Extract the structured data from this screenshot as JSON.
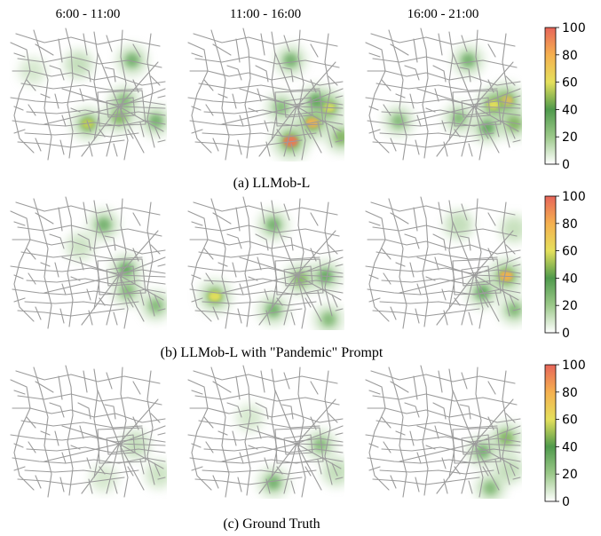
{
  "figure": {
    "column_headers": [
      "6:00 - 11:00",
      "11:00 - 16:00",
      "16:00 - 21:00"
    ]
  },
  "chart_data": {
    "type": "heatmap",
    "panels": [
      {
        "caption": "(a) LLMob-L",
        "maps": [
          {
            "time_window": "6:00 - 11:00",
            "hotspots": [
              {
                "x": 0.78,
                "y": 0.25,
                "intensity": 35
              },
              {
                "x": 0.5,
                "y": 0.72,
                "intensity": 55
              },
              {
                "x": 0.7,
                "y": 0.67,
                "intensity": 45
              },
              {
                "x": 0.93,
                "y": 0.7,
                "intensity": 35
              },
              {
                "x": 0.73,
                "y": 0.55,
                "intensity": 30
              },
              {
                "x": 0.44,
                "y": 0.28,
                "intensity": 22
              },
              {
                "x": 0.15,
                "y": 0.33,
                "intensity": 15
              }
            ]
          },
          {
            "time_window": "11:00 - 16:00",
            "hotspots": [
              {
                "x": 0.66,
                "y": 0.25,
                "intensity": 35
              },
              {
                "x": 0.66,
                "y": 0.85,
                "intensity": 95
              },
              {
                "x": 0.8,
                "y": 0.71,
                "intensity": 80
              },
              {
                "x": 0.9,
                "y": 0.6,
                "intensity": 60
              },
              {
                "x": 0.98,
                "y": 0.82,
                "intensity": 45
              },
              {
                "x": 0.82,
                "y": 0.55,
                "intensity": 40
              },
              {
                "x": 0.6,
                "y": 0.6,
                "intensity": 30
              }
            ]
          },
          {
            "time_window": "16:00 - 21:00",
            "hotspots": [
              {
                "x": 0.66,
                "y": 0.25,
                "intensity": 35
              },
              {
                "x": 0.9,
                "y": 0.55,
                "intensity": 75
              },
              {
                "x": 0.82,
                "y": 0.58,
                "intensity": 60
              },
              {
                "x": 0.95,
                "y": 0.72,
                "intensity": 45
              },
              {
                "x": 0.78,
                "y": 0.75,
                "intensity": 40
              },
              {
                "x": 0.6,
                "y": 0.68,
                "intensity": 30
              },
              {
                "x": 0.22,
                "y": 0.7,
                "intensity": 30
              }
            ]
          }
        ]
      },
      {
        "caption": "(b) LLMob-L with \"Pandemic\" Prompt",
        "maps": [
          {
            "time_window": "6:00 - 11:00",
            "hotspots": [
              {
                "x": 0.6,
                "y": 0.22,
                "intensity": 35
              },
              {
                "x": 0.74,
                "y": 0.55,
                "intensity": 40
              },
              {
                "x": 0.75,
                "y": 0.71,
                "intensity": 30
              },
              {
                "x": 0.93,
                "y": 0.82,
                "intensity": 30
              },
              {
                "x": 0.45,
                "y": 0.38,
                "intensity": 18
              }
            ]
          },
          {
            "time_window": "11:00 - 16:00",
            "hotspots": [
              {
                "x": 0.55,
                "y": 0.22,
                "intensity": 35
              },
              {
                "x": 0.18,
                "y": 0.75,
                "intensity": 60
              },
              {
                "x": 0.72,
                "y": 0.62,
                "intensity": 45
              },
              {
                "x": 0.88,
                "y": 0.6,
                "intensity": 40
              },
              {
                "x": 0.55,
                "y": 0.85,
                "intensity": 35
              },
              {
                "x": 0.9,
                "y": 0.92,
                "intensity": 30
              }
            ]
          },
          {
            "time_window": "16:00 - 21:00",
            "hotspots": [
              {
                "x": 0.6,
                "y": 0.22,
                "intensity": 25
              },
              {
                "x": 0.9,
                "y": 0.6,
                "intensity": 80
              },
              {
                "x": 0.75,
                "y": 0.72,
                "intensity": 40
              },
              {
                "x": 0.95,
                "y": 0.85,
                "intensity": 30
              },
              {
                "x": 0.95,
                "y": 0.25,
                "intensity": 20
              }
            ]
          }
        ]
      },
      {
        "caption": "(c) Ground Truth",
        "maps": [
          {
            "time_window": "6:00 - 11:00",
            "hotspots": [
              {
                "x": 0.8,
                "y": 0.6,
                "intensity": 22
              },
              {
                "x": 0.95,
                "y": 0.82,
                "intensity": 18
              },
              {
                "x": 0.6,
                "y": 0.85,
                "intensity": 15
              }
            ]
          },
          {
            "time_window": "11:00 - 16:00",
            "hotspots": [
              {
                "x": 0.55,
                "y": 0.88,
                "intensity": 35
              },
              {
                "x": 0.85,
                "y": 0.6,
                "intensity": 30
              },
              {
                "x": 0.95,
                "y": 0.8,
                "intensity": 22
              },
              {
                "x": 0.4,
                "y": 0.4,
                "intensity": 15
              }
            ]
          },
          {
            "time_window": "16:00 - 21:00",
            "hotspots": [
              {
                "x": 0.9,
                "y": 0.55,
                "intensity": 45
              },
              {
                "x": 0.75,
                "y": 0.65,
                "intensity": 35
              },
              {
                "x": 0.8,
                "y": 0.92,
                "intensity": 30
              },
              {
                "x": 0.92,
                "y": 0.78,
                "intensity": 25
              }
            ]
          }
        ]
      }
    ],
    "colorbar": {
      "min": 0,
      "max": 100,
      "ticks": [
        0,
        20,
        40,
        60,
        80,
        100
      ],
      "colors": [
        "#ffffff",
        "#9cc98a",
        "#4f9a4c",
        "#e5e05c",
        "#f5b04f",
        "#e7655a"
      ]
    },
    "grid": false
  }
}
